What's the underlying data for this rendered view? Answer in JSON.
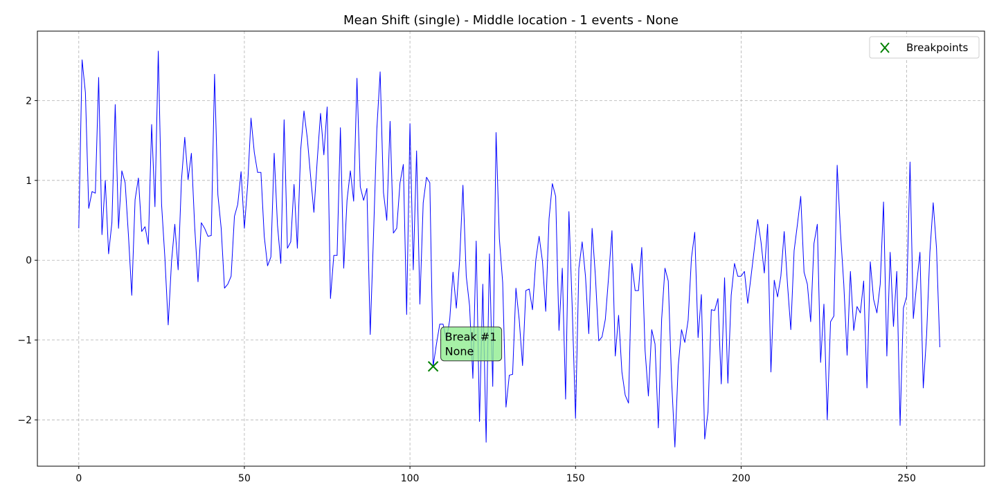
{
  "chart_data": {
    "type": "line",
    "title": "Mean Shift (single) - Middle location - 1 events - None",
    "xlabel": "",
    "ylabel": "",
    "xlim": [
      -12.5,
      273.5
    ],
    "ylim": [
      -2.58,
      2.87
    ],
    "xticks": [
      0,
      50,
      100,
      150,
      200,
      250
    ],
    "yticks": [
      -2,
      -1,
      0,
      1,
      2
    ],
    "grid": true,
    "legend_position": "top-right",
    "series": [
      {
        "color": "#0000ff",
        "x_start": 0,
        "x_step": 1,
        "values": [
          0.4,
          2.51,
          2.1,
          0.65,
          0.86,
          0.84,
          2.29,
          0.32,
          1.0,
          0.08,
          0.47,
          1.95,
          0.4,
          1.12,
          0.97,
          0.31,
          -0.44,
          0.76,
          1.03,
          0.36,
          0.42,
          0.2,
          1.7,
          0.67,
          2.62,
          0.7,
          0.03,
          -0.81,
          -0.02,
          0.45,
          -0.12,
          1.0,
          1.54,
          1.01,
          1.34,
          0.42,
          -0.27,
          0.47,
          0.4,
          0.3,
          0.31,
          2.33,
          0.82,
          0.4,
          -0.35,
          -0.3,
          -0.2,
          0.55,
          0.7,
          1.11,
          0.4,
          0.95,
          1.78,
          1.35,
          1.1,
          1.1,
          0.3,
          -0.07,
          0.04,
          1.34,
          0.44,
          -0.04,
          1.76,
          0.15,
          0.23,
          0.95,
          0.15,
          1.38,
          1.87,
          1.53,
          1.05,
          0.6,
          1.25,
          1.84,
          1.32,
          1.92,
          -0.48,
          0.06,
          0.06,
          1.66,
          -0.1,
          0.75,
          1.12,
          0.74,
          2.28,
          0.92,
          0.75,
          0.9,
          -0.93,
          0.32,
          1.64,
          2.36,
          0.85,
          0.5,
          1.74,
          0.34,
          0.4,
          0.97,
          1.2,
          -0.68,
          1.71,
          -0.12,
          1.37,
          -0.55,
          0.72,
          1.04,
          0.97,
          -1.33,
          -1.05,
          -0.8,
          -0.8,
          -1.0,
          -0.75,
          -0.15,
          -0.6,
          0.0,
          0.94,
          -0.2,
          -0.57,
          -1.48,
          0.24,
          -2.02,
          -0.3,
          -2.28,
          0.08,
          -1.58,
          1.6,
          0.27,
          -0.28,
          -1.84,
          -1.44,
          -1.43,
          -0.35,
          -0.75,
          -1.32,
          -0.38,
          -0.36,
          -0.62,
          0.0,
          0.3,
          -0.01,
          -0.64,
          0.52,
          0.96,
          0.8,
          -0.88,
          -0.1,
          -1.74,
          0.61,
          -0.6,
          -1.98,
          -0.1,
          0.23,
          -0.2,
          -0.92,
          0.4,
          -0.2,
          -1.01,
          -0.96,
          -0.74,
          -0.2,
          0.37,
          -1.2,
          -0.69,
          -1.4,
          -1.69,
          -1.79,
          -0.04,
          -0.38,
          -0.38,
          0.16,
          -1.13,
          -1.7,
          -0.87,
          -1.05,
          -2.1,
          -0.74,
          -0.1,
          -0.26,
          -1.5,
          -2.34,
          -1.33,
          -0.87,
          -1.03,
          -0.75,
          0.03,
          0.35,
          -0.97,
          -0.43,
          -2.24,
          -1.9,
          -0.62,
          -0.63,
          -0.48,
          -1.55,
          -0.22,
          -1.54,
          -0.44,
          -0.04,
          -0.2,
          -0.2,
          -0.14,
          -0.54,
          -0.2,
          0.15,
          0.51,
          0.23,
          -0.16,
          0.45,
          -1.4,
          -0.25,
          -0.46,
          -0.2,
          0.36,
          -0.3,
          -0.87,
          0.12,
          0.45,
          0.8,
          -0.15,
          -0.3,
          -0.77,
          0.21,
          0.45,
          -1.28,
          -0.55,
          -2.0,
          -0.77,
          -0.7,
          1.19,
          0.35,
          -0.3,
          -1.19,
          -0.14,
          -0.88,
          -0.58,
          -0.66,
          -0.26,
          -1.6,
          -0.02,
          -0.49,
          -0.66,
          -0.3,
          0.73,
          -1.2,
          0.1,
          -0.83,
          -0.14,
          -2.07,
          -0.6,
          -0.45,
          1.23,
          -0.73,
          -0.3,
          0.1,
          -1.6,
          -0.94,
          0.1,
          0.72,
          0.15,
          -1.09
        ]
      }
    ],
    "breakpoints": [
      {
        "x": 107,
        "y": -1.33,
        "label_line1": "Break #1",
        "label_line2": "None",
        "marker_color": "#008000"
      }
    ],
    "legend": [
      {
        "label": "Breakpoints",
        "marker": "x",
        "color": "#008000"
      }
    ],
    "annotation_box_color": "#90ee90"
  }
}
